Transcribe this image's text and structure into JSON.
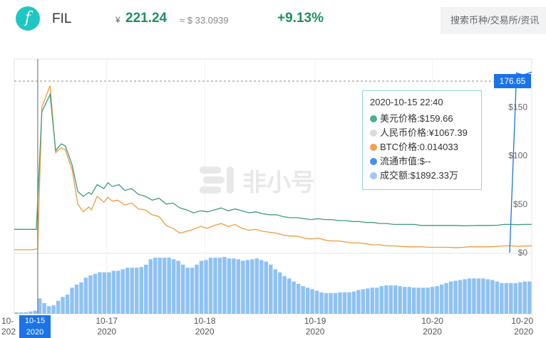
{
  "header": {
    "logo_glyph": "f",
    "coin": "FIL",
    "currency_symbol": "¥",
    "price": "221.24",
    "usd_approx": "≈ $ 33.0939",
    "change": "+9.13%",
    "search_placeholder": "搜索币种/交易所/资讯"
  },
  "watermark": "非小号",
  "crosshair": {
    "price_label": "176.65",
    "date_label_line1": "10-15",
    "date_label_line2": "2020"
  },
  "tooltip": {
    "title": "2020-10-15 22:40",
    "rows": [
      {
        "label": "美元价格:$159.66",
        "color": "#4caf8a"
      },
      {
        "label": "人民币价格:¥1067.39",
        "color": "#dcdcdc"
      },
      {
        "label": "BTC价格:0.014033",
        "color": "#f4a04c"
      },
      {
        "label": "流通市值:$--",
        "color": "#4a8ff2"
      },
      {
        "label": "成交额:$1892.33万",
        "color": "#9ec8f5"
      }
    ]
  },
  "colors": {
    "usd": "#3f9c7c",
    "btc": "#f19a3e",
    "volume": "#8fc2f2",
    "crosshair": "#666666",
    "axis_blue": "#1a73e8"
  },
  "chart_data": {
    "type": "line",
    "y_axis_ticks": [
      "$150",
      "$100",
      "$50",
      "$0"
    ],
    "y_axis_values": [
      150,
      100,
      50,
      0
    ],
    "ylim": [
      0,
      176.65
    ],
    "x_tick_labels": [
      {
        "line1": "10-",
        "line2": "202"
      },
      {
        "line1": "10-17",
        "line2": "2020"
      },
      {
        "line1": "10-18",
        "line2": "2020"
      },
      {
        "line1": "10-19",
        "line2": "2020"
      },
      {
        "line1": "10-20",
        "line2": "2020"
      },
      {
        "line1": "10-20",
        "line2": "2020"
      }
    ],
    "usd_series": [
      [
        0,
        24
      ],
      [
        2,
        24
      ],
      [
        3.2,
        24
      ],
      [
        4,
        145
      ],
      [
        5.2,
        163
      ],
      [
        6,
        105
      ],
      [
        6.8,
        112
      ],
      [
        7.4,
        110
      ],
      [
        8.4,
        90
      ],
      [
        9.2,
        63
      ],
      [
        10,
        58
      ],
      [
        10.8,
        62
      ],
      [
        11.2,
        60
      ],
      [
        12,
        70
      ],
      [
        13,
        66
      ],
      [
        13.6,
        72
      ],
      [
        14.2,
        68
      ],
      [
        15.2,
        70
      ],
      [
        16,
        64
      ],
      [
        17,
        66
      ],
      [
        18,
        60
      ],
      [
        19,
        58
      ],
      [
        20,
        54
      ],
      [
        21,
        56
      ],
      [
        22,
        50
      ],
      [
        23,
        51
      ],
      [
        24,
        46
      ],
      [
        25,
        44
      ],
      [
        26,
        41
      ],
      [
        27,
        43
      ],
      [
        28,
        42
      ],
      [
        29,
        44
      ],
      [
        30,
        46
      ],
      [
        31,
        43
      ],
      [
        32,
        45
      ],
      [
        33,
        43
      ],
      [
        34,
        41
      ],
      [
        35,
        42
      ],
      [
        36,
        40
      ],
      [
        37,
        39
      ],
      [
        38,
        39
      ],
      [
        39,
        37
      ],
      [
        40,
        36
      ],
      [
        41,
        36
      ],
      [
        42,
        35
      ],
      [
        43,
        34
      ],
      [
        44,
        35
      ],
      [
        45,
        34
      ],
      [
        46,
        34
      ],
      [
        47,
        33
      ],
      [
        48,
        33
      ],
      [
        49,
        32
      ],
      [
        50,
        32
      ],
      [
        51,
        31
      ],
      [
        52,
        31
      ],
      [
        53,
        30
      ],
      [
        54,
        30
      ],
      [
        55,
        29
      ],
      [
        56,
        29
      ],
      [
        57,
        29
      ],
      [
        58,
        29
      ],
      [
        59,
        28
      ],
      [
        60,
        28
      ],
      [
        61,
        28
      ],
      [
        62,
        28
      ],
      [
        63,
        28
      ],
      [
        64,
        28
      ],
      [
        65,
        27.6
      ],
      [
        66,
        27.8
      ],
      [
        67,
        28
      ],
      [
        68,
        28
      ],
      [
        69,
        28
      ],
      [
        70,
        28.2
      ],
      [
        71,
        29
      ],
      [
        72,
        29
      ],
      [
        73,
        28.8
      ],
      [
        74,
        29
      ],
      [
        75,
        29
      ]
    ],
    "btc_series": [
      [
        0,
        3
      ],
      [
        2.8,
        3
      ],
      [
        3.4,
        4
      ],
      [
        4,
        150
      ],
      [
        5.2,
        172
      ],
      [
        6,
        103
      ],
      [
        6.8,
        108
      ],
      [
        7.4,
        106
      ],
      [
        8.4,
        85
      ],
      [
        9.2,
        50
      ],
      [
        10,
        42
      ],
      [
        10.8,
        47
      ],
      [
        11.2,
        44
      ],
      [
        12,
        58
      ],
      [
        13,
        52
      ],
      [
        13.6,
        57
      ],
      [
        14.2,
        53
      ],
      [
        15,
        54
      ],
      [
        16,
        49
      ],
      [
        17,
        51
      ],
      [
        18,
        45
      ],
      [
        19,
        44
      ],
      [
        20,
        39
      ],
      [
        21,
        37
      ],
      [
        22,
        28
      ],
      [
        23,
        25
      ],
      [
        24,
        20
      ],
      [
        25,
        22
      ],
      [
        26,
        24
      ],
      [
        27,
        27
      ],
      [
        28,
        25
      ],
      [
        29,
        28
      ],
      [
        30,
        30
      ],
      [
        31,
        27
      ],
      [
        32,
        29
      ],
      [
        33,
        25
      ],
      [
        34,
        23
      ],
      [
        35,
        24
      ],
      [
        36,
        22
      ],
      [
        37,
        21
      ],
      [
        38,
        20
      ],
      [
        39,
        18
      ],
      [
        40,
        17
      ],
      [
        41,
        17
      ],
      [
        42,
        15
      ],
      [
        43,
        14
      ],
      [
        44,
        15
      ],
      [
        45,
        13
      ],
      [
        46,
        12
      ],
      [
        47,
        12
      ],
      [
        48,
        11
      ],
      [
        49,
        10
      ],
      [
        50,
        10
      ],
      [
        51,
        9
      ],
      [
        52,
        8
      ],
      [
        53,
        8
      ],
      [
        54,
        7
      ],
      [
        55,
        7
      ],
      [
        56,
        6.5
      ],
      [
        57,
        6
      ],
      [
        58,
        6
      ],
      [
        59,
        6
      ],
      [
        60,
        5.5
      ],
      [
        61,
        5.5
      ],
      [
        62,
        5.5
      ],
      [
        63,
        5.5
      ],
      [
        64,
        5
      ],
      [
        65,
        5.5
      ],
      [
        66,
        6
      ],
      [
        67,
        6
      ],
      [
        68,
        6
      ],
      [
        69,
        6
      ],
      [
        70,
        6.5
      ],
      [
        71,
        7
      ],
      [
        72,
        7
      ],
      [
        73,
        6.5
      ],
      [
        74,
        6.8
      ],
      [
        75,
        7
      ]
    ],
    "market_cap_series": [
      [
        71.8,
        0
      ],
      [
        72.8,
        185
      ],
      [
        73.8,
        183
      ],
      [
        75,
        186
      ]
    ],
    "volume_values": [
      2,
      2,
      2,
      3,
      4,
      20,
      14,
      10,
      11,
      17,
      22,
      25,
      34,
      38,
      41,
      47,
      50,
      52,
      54,
      54,
      54,
      56,
      56,
      58,
      60,
      60,
      60,
      61,
      64,
      71,
      73,
      73,
      73,
      73,
      71,
      69,
      64,
      60,
      60,
      64,
      69,
      70,
      73,
      73,
      73,
      74,
      72,
      72,
      71,
      69,
      70,
      71,
      72,
      70,
      68,
      64,
      58,
      54,
      49,
      46,
      42,
      39,
      36,
      34,
      32,
      30,
      28,
      27,
      27,
      27,
      28,
      28,
      28,
      29,
      31,
      32,
      33,
      34,
      34,
      36,
      37,
      37,
      37,
      36,
      35,
      35,
      34,
      34,
      34,
      34,
      35,
      36,
      38,
      40,
      42,
      43,
      44,
      45,
      46,
      46,
      46,
      46,
      45,
      44,
      42,
      40,
      40,
      40,
      40,
      41,
      42,
      42
    ]
  }
}
